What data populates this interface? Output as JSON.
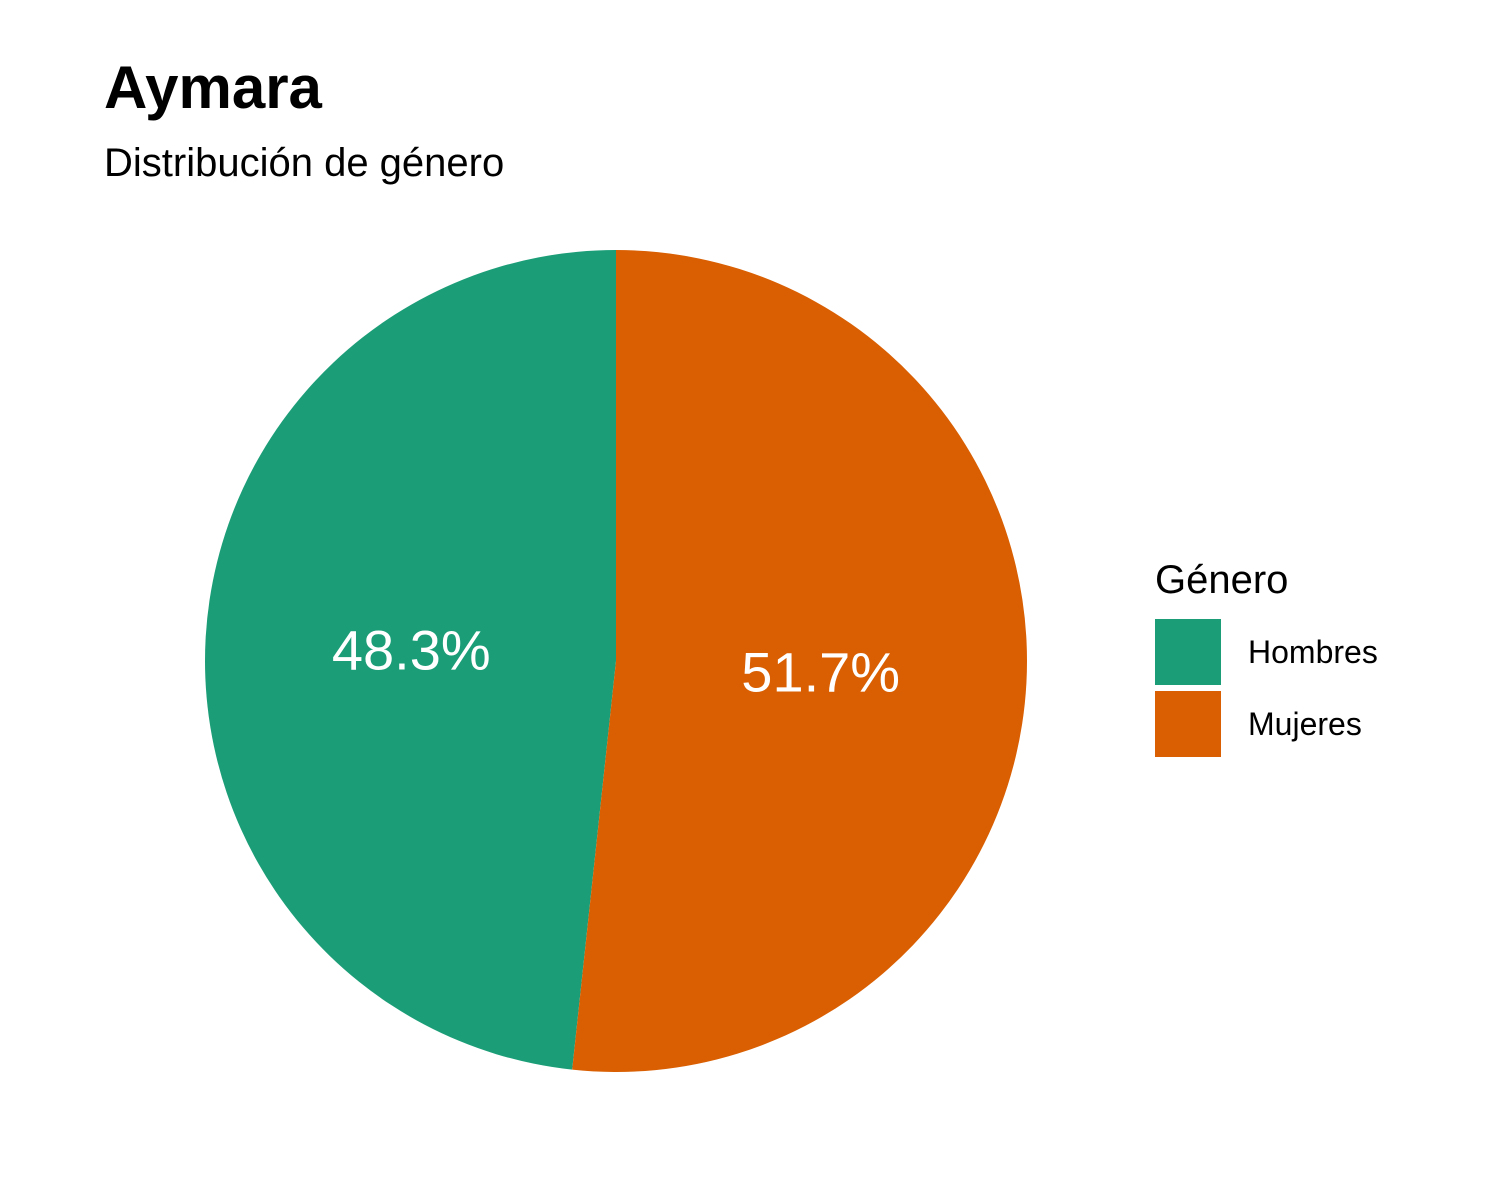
{
  "chart_data": {
    "type": "pie",
    "title": "Aymara",
    "subtitle": "Distribución de género",
    "legend": {
      "title": "Género",
      "placement": "right"
    },
    "slices": [
      {
        "name": "Hombres",
        "value": 48.3,
        "label": "48.3%",
        "color": "#1b9e77"
      },
      {
        "name": "Mujeres",
        "value": 51.7,
        "label": "51.7%",
        "color": "#d95f02"
      }
    ]
  }
}
